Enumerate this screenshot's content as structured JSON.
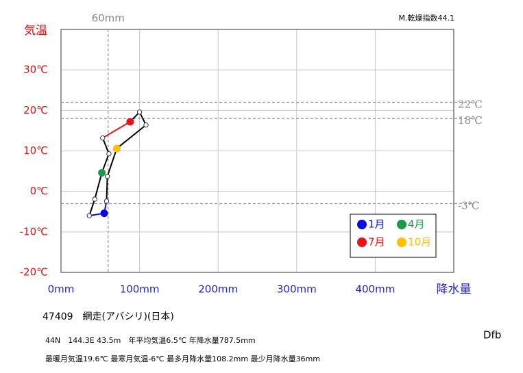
{
  "chart_data": {
    "type": "climograph",
    "index_label": "M.乾燥指数44.1",
    "y_label": "気温",
    "x_label": "降水量",
    "x": [
      55,
      36,
      43,
      52,
      61,
      53,
      88,
      100,
      108.2,
      71,
      59,
      58
    ],
    "values": [
      -5.4,
      -6,
      -1.9,
      4.6,
      9.3,
      13.2,
      17.2,
      19.6,
      16.4,
      10.6,
      3.7,
      -2.4
    ],
    "point_colors": [
      "#0a0ae6",
      null,
      null,
      "#1a9a4a",
      null,
      null,
      "#e8141a",
      null,
      null,
      "#ffc000",
      null,
      null
    ],
    "line_colors": [
      "#0a0ae6",
      "#000000",
      "#000000",
      "#000000",
      "#000000",
      "#e8141a",
      "#000000",
      "#000000",
      "#000000",
      "#000000",
      "#000000",
      "#0a0ae6"
    ],
    "legend": [
      {
        "label": "1月",
        "color": "#0a0ae6"
      },
      {
        "label": "4月",
        "color": "#1a9a4a"
      },
      {
        "label": "7月",
        "color": "#e8141a"
      },
      {
        "label": "10月",
        "color": "#ffc000"
      }
    ],
    "xlim": [
      0,
      500
    ],
    "ylim": [
      -20,
      40
    ],
    "xticks": [
      {
        "value": 0,
        "label": "0mm"
      },
      {
        "value": 100,
        "label": "100mm"
      },
      {
        "value": 200,
        "label": "200mm"
      },
      {
        "value": 300,
        "label": "300mm"
      },
      {
        "value": 400,
        "label": "400mm"
      },
      500
    ],
    "yticks": [
      {
        "value": -20,
        "label": "-20℃"
      },
      {
        "value": -10,
        "label": "-10℃"
      },
      {
        "value": 0,
        "label": "0℃"
      },
      {
        "value": 10,
        "label": "10℃"
      },
      {
        "value": 20,
        "label": "20℃"
      },
      {
        "value": 30,
        "label": "30℃"
      },
      40
    ],
    "x_refs": [
      {
        "value": 60,
        "label": "60mm"
      }
    ],
    "y_refs": [
      {
        "value": 22,
        "label": "22℃"
      },
      {
        "value": 18,
        "label": "18℃"
      },
      {
        "value": -3,
        "label": "-3℃"
      }
    ],
    "grid": true,
    "station": "47409　網走(アバシリ)(日本)",
    "info_line1": "44N　144.3E 43.5m　年平均気温6.5℃ 年降水量787.5mm",
    "info_line2": "最暖月気温19.6℃ 最寒月気温-6℃ 最多月降水量108.2mm 最少月降水量36mm",
    "climate_class": "Dfb"
  }
}
